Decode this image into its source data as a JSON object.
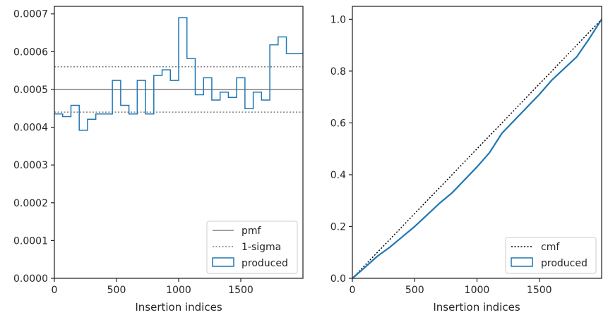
{
  "chart_data": [
    {
      "type": "step",
      "xlabel": "Insertion indices",
      "ylabel": "",
      "xlim": [
        0,
        2000
      ],
      "ylim": [
        0,
        0.00072
      ],
      "xticks": [
        "0",
        "500",
        "1000",
        "1500"
      ],
      "yticks": [
        "0.0000",
        "0.0001",
        "0.0002",
        "0.0003",
        "0.0004",
        "0.0005",
        "0.0006",
        "0.0007"
      ],
      "grid": false,
      "legend_position": "lower-right",
      "lines": [
        {
          "label": "pmf",
          "y": 0.0005,
          "style": "solid",
          "color": "#808080"
        },
        {
          "label": "1-sigma",
          "y": [
            0.00044,
            0.00056
          ],
          "style": "dotted",
          "color": "#808080"
        }
      ],
      "series": [
        {
          "name": "produced",
          "color": "#1f77b4",
          "bin_width": 66.67,
          "values": [
            0.000435,
            0.000428,
            0.000458,
            0.000392,
            0.000421,
            0.000435,
            0.000435,
            0.000524,
            0.000458,
            0.000435,
            0.000524,
            0.000435,
            0.000537,
            0.000552,
            0.000524,
            0.00069,
            0.000582,
            0.000486,
            0.000531,
            0.000472,
            0.000493,
            0.000479,
            0.000531,
            0.000449,
            0.000493,
            0.000472,
            0.000618,
            0.000639,
            0.000595,
            0.000595
          ]
        }
      ]
    },
    {
      "type": "line",
      "xlabel": "Insertion indices",
      "ylabel": "",
      "xlim": [
        0,
        2000
      ],
      "ylim": [
        0,
        1.05
      ],
      "xticks": [
        "0",
        "500",
        "1000",
        "1500"
      ],
      "yticks": [
        "0.0",
        "0.2",
        "0.4",
        "0.6",
        "0.8",
        "1.0"
      ],
      "grid": false,
      "legend_position": "lower-right",
      "series": [
        {
          "name": "cmf",
          "style": "dotted",
          "color": "#000000",
          "x": [
            0,
            2000
          ],
          "y": [
            0,
            1.0
          ]
        },
        {
          "name": "produced",
          "style": "solid",
          "color": "#1f77b4",
          "x": [
            0,
            100,
            200,
            300,
            400,
            500,
            600,
            700,
            800,
            900,
            1000,
            1100,
            1200,
            1300,
            1400,
            1500,
            1600,
            1700,
            1800,
            1900,
            2000
          ],
          "y": [
            0,
            0.042,
            0.085,
            0.12,
            0.16,
            0.2,
            0.245,
            0.29,
            0.33,
            0.38,
            0.43,
            0.485,
            0.56,
            0.61,
            0.66,
            0.71,
            0.765,
            0.81,
            0.855,
            0.925,
            1.0
          ]
        }
      ]
    }
  ],
  "legends": [
    {
      "pmf": "pmf",
      "sigma": "1-sigma",
      "produced": "produced"
    },
    {
      "cmf": "cmf",
      "produced": "produced"
    }
  ]
}
